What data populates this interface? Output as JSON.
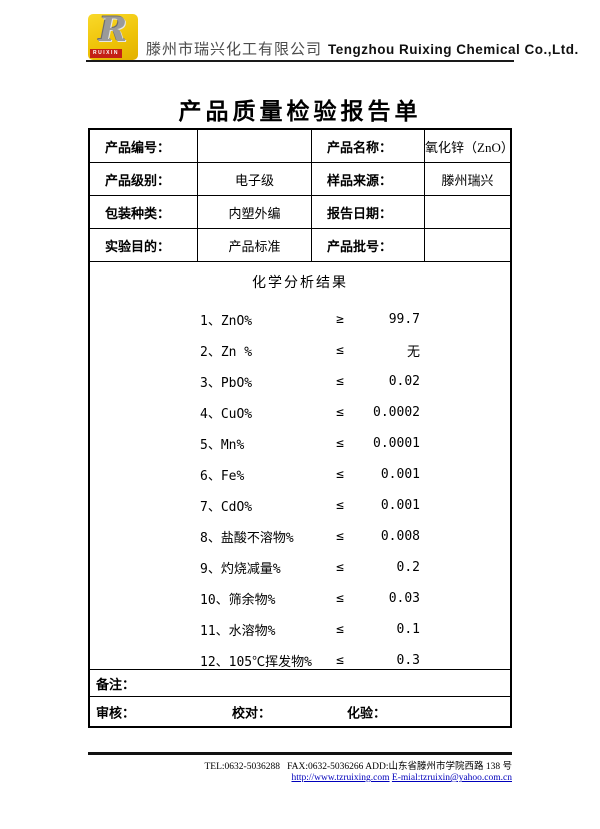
{
  "header": {
    "logo": {
      "r": "R",
      "brand": "RUIXIN"
    },
    "company_cn": "滕州市瑞兴化工有限公司",
    "company_en": "Tengzhou Ruixing Chemical Co.,Ltd."
  },
  "title": "产品质量检验报告单",
  "info_table": {
    "rows": [
      {
        "label1": "产品编号：",
        "value1": "",
        "label2": "产品名称：",
        "value2": "氧化锌（ZnO）"
      },
      {
        "label1": "产品级别：",
        "value1": "电子级",
        "label2": "样品来源：",
        "value2": "滕州瑞兴"
      },
      {
        "label1": "包装种类：",
        "value1": "内塑外编",
        "label2": "报告日期：",
        "value2": ""
      },
      {
        "label1": "实验目的：",
        "value1": "产品标准",
        "label2": "产品批号：",
        "value2": ""
      }
    ]
  },
  "analysis": {
    "section_title": "化学分析结果",
    "items": [
      {
        "name": "1、ZnO%",
        "op": "≥",
        "value": "99.7"
      },
      {
        "name": "2、Zn %",
        "op": "≤",
        "value": "无"
      },
      {
        "name": "3、PbO%",
        "op": "≤",
        "value": "0.02"
      },
      {
        "name": "4、CuO%",
        "op": "≤",
        "value": "0.0002"
      },
      {
        "name": "5、Mn%",
        "op": "≤",
        "value": "0.0001"
      },
      {
        "name": "6、Fe%",
        "op": "≤",
        "value": "0.001"
      },
      {
        "name": "7、CdO%",
        "op": "≤",
        "value": "0.001"
      },
      {
        "name": "8、盐酸不溶物%",
        "op": "≤",
        "value": "0.008"
      },
      {
        "name": "9、灼烧减量%",
        "op": "≤",
        "value": "0.2"
      },
      {
        "name": "10、筛余物%",
        "op": "≤",
        "value": "0.03"
      },
      {
        "name": "11、水溶物%",
        "op": "≤",
        "value": "0.1"
      },
      {
        "name": "12、105℃挥发物%",
        "op": "≤",
        "value": "0.3"
      }
    ]
  },
  "remarks_label": "备注：",
  "signatures": {
    "review": "审核：",
    "proofread": "校对：",
    "assay": "化验："
  },
  "footer": {
    "line1": "TEL:0632-5036288   FAX:0632-5036266 ADD:山东省滕州市学院西路 138 号",
    "website": "http://www.tzruixing.com",
    "email": "E-mial:tzruixin@yahoo.com.cn",
    "link_color": "#0000bb"
  }
}
